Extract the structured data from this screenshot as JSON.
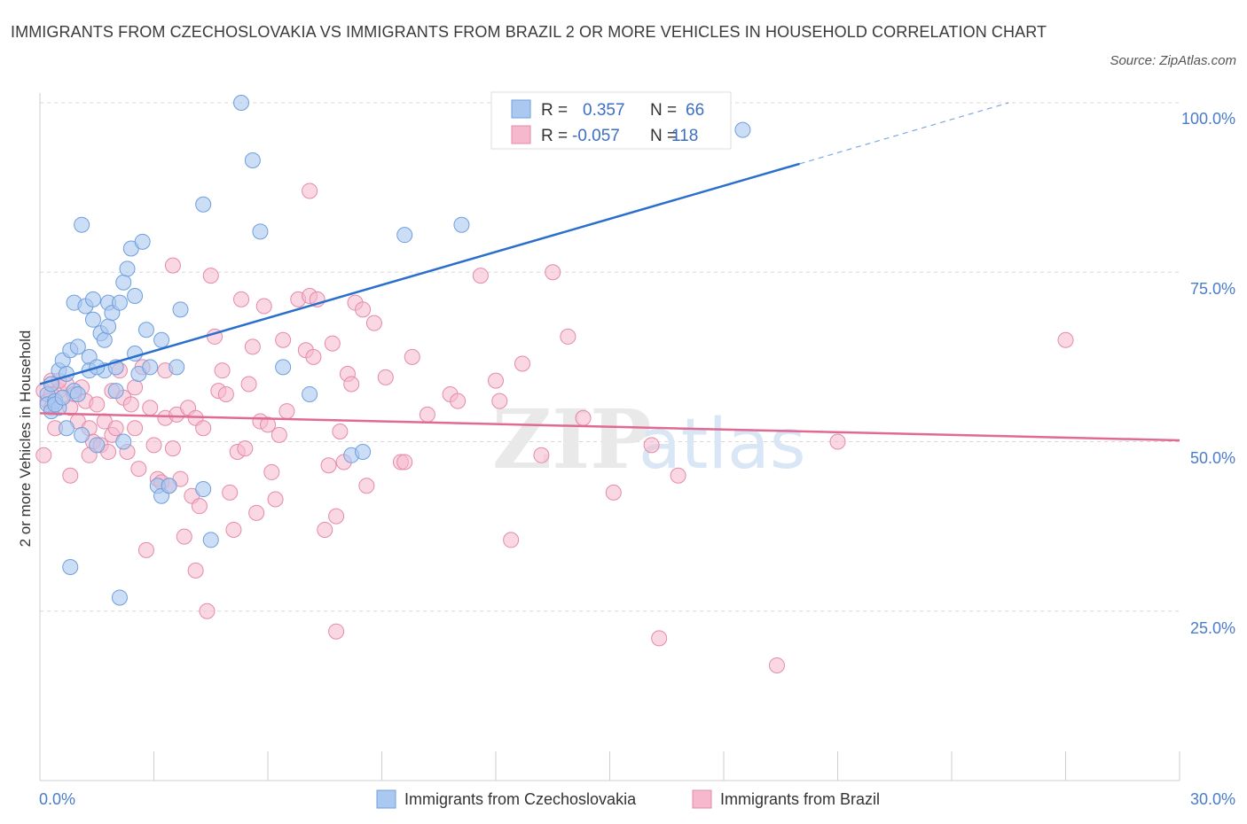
{
  "title": "IMMIGRANTS FROM CZECHOSLOVAKIA VS IMMIGRANTS FROM BRAZIL 2 OR MORE VEHICLES IN HOUSEHOLD CORRELATION CHART",
  "source": "Source: ZipAtlas.com",
  "watermark": {
    "zip": "ZIP",
    "atlas": "atlas"
  },
  "legend_box": {
    "rows": [
      {
        "r_label": "R =",
        "r_value": "0.357",
        "n_label": "N =",
        "n_value": "66"
      },
      {
        "r_label": "R =",
        "r_value": "-0.057",
        "n_label": "N =",
        "n_value": "118"
      }
    ]
  },
  "colors": {
    "blue_fill": "#aac8f0",
    "blue_stroke": "#6f9fdc",
    "blue_line": "#2a6fcc",
    "pink_fill": "#f6b8cc",
    "pink_stroke": "#e58aa8",
    "pink_line": "#e06a92",
    "axis_label": "#4a7cc9",
    "grid": "#d8d8d8"
  },
  "chart_data": {
    "type": "scatter",
    "title": "IMMIGRANTS FROM CZECHOSLOVAKIA VS IMMIGRANTS FROM BRAZIL 2 OR MORE VEHICLES IN HOUSEHOLD CORRELATION CHART",
    "xlabel": "",
    "ylabel": "2 or more Vehicles in Household",
    "xlim": [
      0,
      30
    ],
    "ylim": [
      0,
      100
    ],
    "x_tick_labels": [
      "0.0%",
      "30.0%"
    ],
    "y_ticks": [
      25,
      50,
      75,
      100
    ],
    "y_tick_labels": [
      "25.0%",
      "50.0%",
      "75.0%",
      "100.0%"
    ],
    "grid": true,
    "legend_position": "bottom",
    "series": [
      {
        "name": "Immigrants from Czechoslovakia",
        "color": "#aac8f0",
        "points": [
          [
            0.2,
            57.0
          ],
          [
            0.2,
            55.5
          ],
          [
            0.3,
            54.5
          ],
          [
            0.4,
            56.0
          ],
          [
            0.3,
            58.5
          ],
          [
            0.5,
            60.5
          ],
          [
            0.6,
            62.0
          ],
          [
            0.5,
            55.0
          ],
          [
            0.7,
            60.0
          ],
          [
            0.7,
            52.0
          ],
          [
            0.8,
            63.5
          ],
          [
            0.9,
            70.5
          ],
          [
            0.9,
            57.5
          ],
          [
            1.0,
            64.0
          ],
          [
            1.1,
            51.0
          ],
          [
            1.1,
            82.0
          ],
          [
            1.2,
            70.0
          ],
          [
            1.3,
            62.5
          ],
          [
            1.3,
            60.5
          ],
          [
            1.4,
            71.0
          ],
          [
            1.4,
            68.0
          ],
          [
            1.5,
            49.5
          ],
          [
            1.6,
            66.0
          ],
          [
            1.7,
            65.0
          ],
          [
            1.7,
            60.5
          ],
          [
            1.8,
            70.5
          ],
          [
            1.8,
            67.0
          ],
          [
            1.9,
            69.0
          ],
          [
            2.0,
            61.0
          ],
          [
            2.0,
            57.5
          ],
          [
            2.1,
            70.5
          ],
          [
            2.2,
            50.0
          ],
          [
            2.2,
            73.5
          ],
          [
            2.3,
            75.5
          ],
          [
            2.4,
            78.5
          ],
          [
            2.5,
            63.0
          ],
          [
            2.5,
            71.5
          ],
          [
            2.6,
            60.0
          ],
          [
            2.7,
            79.5
          ],
          [
            2.8,
            66.5
          ],
          [
            2.9,
            61.0
          ],
          [
            3.1,
            43.5
          ],
          [
            3.2,
            42.0
          ],
          [
            3.2,
            65.0
          ],
          [
            3.4,
            43.5
          ],
          [
            3.6,
            61.0
          ],
          [
            3.7,
            69.5
          ],
          [
            4.3,
            85.0
          ],
          [
            4.3,
            43.0
          ],
          [
            4.5,
            35.5
          ],
          [
            5.3,
            100.0
          ],
          [
            5.6,
            91.5
          ],
          [
            5.8,
            81.0
          ],
          [
            6.4,
            61.0
          ],
          [
            7.1,
            57.0
          ],
          [
            8.2,
            48.0
          ],
          [
            8.5,
            48.5
          ],
          [
            9.6,
            80.5
          ],
          [
            11.1,
            82.0
          ],
          [
            18.5,
            96.0
          ],
          [
            2.1,
            27.0
          ],
          [
            0.8,
            31.5
          ],
          [
            0.4,
            55.5
          ],
          [
            0.6,
            56.5
          ],
          [
            1.0,
            57.0
          ],
          [
            1.5,
            61.0
          ]
        ]
      },
      {
        "name": "Immigrants from Brazil",
        "color": "#f6b8cc",
        "points": [
          [
            0.1,
            57.5
          ],
          [
            0.1,
            48.0
          ],
          [
            0.2,
            56.0
          ],
          [
            0.3,
            59.0
          ],
          [
            0.3,
            55.0
          ],
          [
            0.4,
            52.0
          ],
          [
            0.5,
            57.5
          ],
          [
            0.6,
            56.5
          ],
          [
            0.7,
            58.5
          ],
          [
            0.8,
            45.0
          ],
          [
            0.9,
            57.0
          ],
          [
            1.0,
            53.0
          ],
          [
            1.1,
            58.0
          ],
          [
            1.2,
            56.0
          ],
          [
            1.3,
            52.0
          ],
          [
            1.4,
            50.0
          ],
          [
            1.5,
            55.5
          ],
          [
            1.6,
            49.5
          ],
          [
            1.7,
            53.0
          ],
          [
            1.8,
            48.5
          ],
          [
            1.9,
            51.0
          ],
          [
            2.0,
            52.0
          ],
          [
            2.1,
            60.5
          ],
          [
            2.2,
            56.5
          ],
          [
            2.3,
            48.5
          ],
          [
            2.4,
            55.5
          ],
          [
            2.5,
            58.0
          ],
          [
            2.6,
            46.0
          ],
          [
            2.7,
            61.0
          ],
          [
            2.8,
            34.0
          ],
          [
            2.9,
            55.0
          ],
          [
            3.0,
            49.5
          ],
          [
            3.1,
            44.5
          ],
          [
            3.2,
            44.0
          ],
          [
            3.3,
            53.5
          ],
          [
            3.4,
            43.5
          ],
          [
            3.5,
            49.0
          ],
          [
            3.5,
            76.0
          ],
          [
            3.6,
            54.0
          ],
          [
            3.7,
            44.5
          ],
          [
            3.8,
            36.0
          ],
          [
            3.9,
            55.0
          ],
          [
            4.0,
            42.0
          ],
          [
            4.1,
            53.5
          ],
          [
            4.1,
            31.0
          ],
          [
            4.2,
            40.5
          ],
          [
            4.3,
            52.0
          ],
          [
            4.4,
            25.0
          ],
          [
            4.5,
            74.5
          ],
          [
            4.6,
            65.5
          ],
          [
            4.7,
            57.5
          ],
          [
            4.8,
            60.5
          ],
          [
            4.9,
            57.0
          ],
          [
            5.0,
            42.5
          ],
          [
            5.1,
            37.0
          ],
          [
            5.2,
            48.5
          ],
          [
            5.3,
            71.0
          ],
          [
            5.4,
            49.0
          ],
          [
            5.5,
            58.5
          ],
          [
            5.6,
            64.0
          ],
          [
            5.7,
            39.5
          ],
          [
            5.8,
            53.0
          ],
          [
            5.9,
            70.0
          ],
          [
            6.0,
            52.5
          ],
          [
            6.1,
            45.5
          ],
          [
            6.2,
            41.5
          ],
          [
            6.3,
            51.0
          ],
          [
            6.4,
            65.0
          ],
          [
            6.5,
            54.5
          ],
          [
            6.8,
            71.0
          ],
          [
            7.0,
            63.5
          ],
          [
            7.1,
            87.0
          ],
          [
            7.1,
            71.5
          ],
          [
            7.2,
            62.5
          ],
          [
            7.3,
            71.0
          ],
          [
            7.5,
            37.0
          ],
          [
            7.6,
            46.5
          ],
          [
            7.7,
            64.5
          ],
          [
            7.8,
            39.0
          ],
          [
            7.9,
            51.5
          ],
          [
            7.8,
            22.0
          ],
          [
            8.0,
            47.0
          ],
          [
            8.1,
            60.0
          ],
          [
            8.2,
            58.5
          ],
          [
            8.3,
            70.5
          ],
          [
            8.5,
            69.5
          ],
          [
            8.6,
            43.5
          ],
          [
            8.8,
            67.5
          ],
          [
            9.1,
            59.5
          ],
          [
            9.5,
            47.0
          ],
          [
            9.6,
            47.0
          ],
          [
            9.8,
            62.5
          ],
          [
            10.2,
            54.0
          ],
          [
            10.8,
            57.0
          ],
          [
            11.0,
            56.0
          ],
          [
            11.6,
            74.5
          ],
          [
            12.0,
            59.0
          ],
          [
            12.1,
            56.0
          ],
          [
            12.4,
            35.5
          ],
          [
            12.7,
            61.5
          ],
          [
            13.2,
            48.0
          ],
          [
            13.5,
            75.0
          ],
          [
            13.9,
            65.5
          ],
          [
            14.3,
            53.5
          ],
          [
            15.1,
            42.5
          ],
          [
            16.1,
            49.5
          ],
          [
            16.3,
            21.0
          ],
          [
            16.8,
            45.0
          ],
          [
            19.4,
            17.0
          ],
          [
            21.0,
            50.0
          ],
          [
            27.0,
            65.0
          ],
          [
            0.3,
            57.0
          ],
          [
            0.5,
            59.0
          ],
          [
            0.8,
            55.0
          ],
          [
            1.3,
            48.0
          ],
          [
            1.9,
            57.5
          ],
          [
            2.5,
            52.0
          ],
          [
            3.3,
            60.5
          ]
        ]
      }
    ],
    "trend_lines": [
      {
        "series": "Immigrants from Czechoslovakia",
        "x": [
          0,
          20,
          25.5
        ],
        "y": [
          58.5,
          91.0,
          100.0
        ],
        "dashed_after_x": 20
      },
      {
        "series": "Immigrants from Brazil",
        "x": [
          0,
          30
        ],
        "y": [
          54.2,
          50.2
        ]
      }
    ]
  }
}
